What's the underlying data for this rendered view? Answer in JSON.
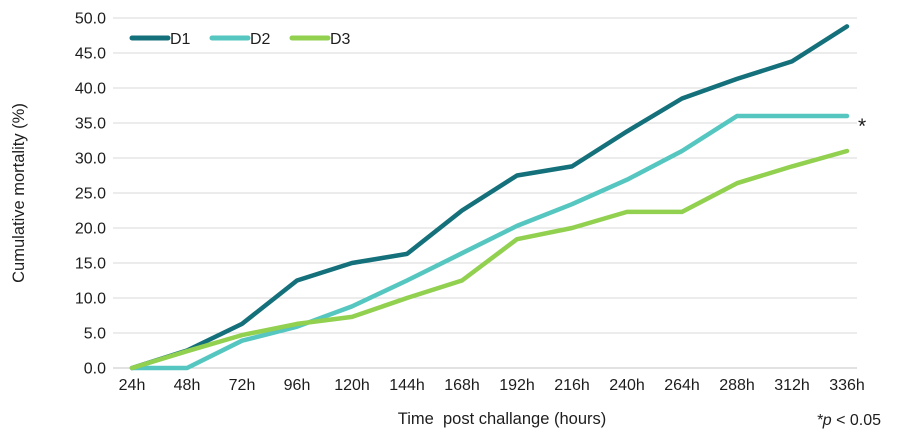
{
  "chart_data": {
    "type": "line",
    "categories": [
      "24h",
      "48h",
      "72h",
      "96h",
      "120h",
      "144h",
      "168h",
      "192h",
      "216h",
      "240h",
      "264h",
      "288h",
      "312h",
      "336h"
    ],
    "series": [
      {
        "name": "D1",
        "color": "#14707a",
        "values": [
          0,
          2.5,
          6.3,
          12.5,
          15.0,
          16.3,
          22.5,
          27.5,
          28.8,
          33.8,
          38.5,
          41.3,
          43.8,
          48.8
        ]
      },
      {
        "name": "D2",
        "color": "#55c6c0",
        "values": [
          0,
          0,
          3.9,
          5.9,
          8.8,
          12.5,
          16.4,
          20.3,
          23.4,
          26.9,
          31.0,
          36.0,
          36.0,
          36.0
        ]
      },
      {
        "name": "D3",
        "color": "#92d050",
        "values": [
          0,
          2.4,
          4.7,
          6.3,
          7.3,
          10.0,
          12.5,
          18.4,
          20.0,
          22.3,
          22.3,
          26.4,
          28.8,
          31.0
        ]
      }
    ],
    "xlabel": "Time  post challange (hours)",
    "ylabel": "Cumulative mortality (%)",
    "ylim": [
      0,
      50
    ],
    "ytick_step": 5,
    "ytick_labels": [
      "0.0",
      "5.0",
      "10.0",
      "15.0",
      "20.0",
      "25.0",
      "30.0",
      "35.0",
      "40.0",
      "45.0",
      "50.0"
    ],
    "grid": "horizontal",
    "legend_position": "top-left",
    "annotation": {
      "text": "*"
    }
  },
  "footnote": {
    "star": "*",
    "p": "p",
    "rest": " < 0.05"
  },
  "colors": {
    "grid": "#d9d9d9",
    "axis_line": "#c4c4c4",
    "text": "#1d1d1d",
    "background": "#ffffff"
  }
}
